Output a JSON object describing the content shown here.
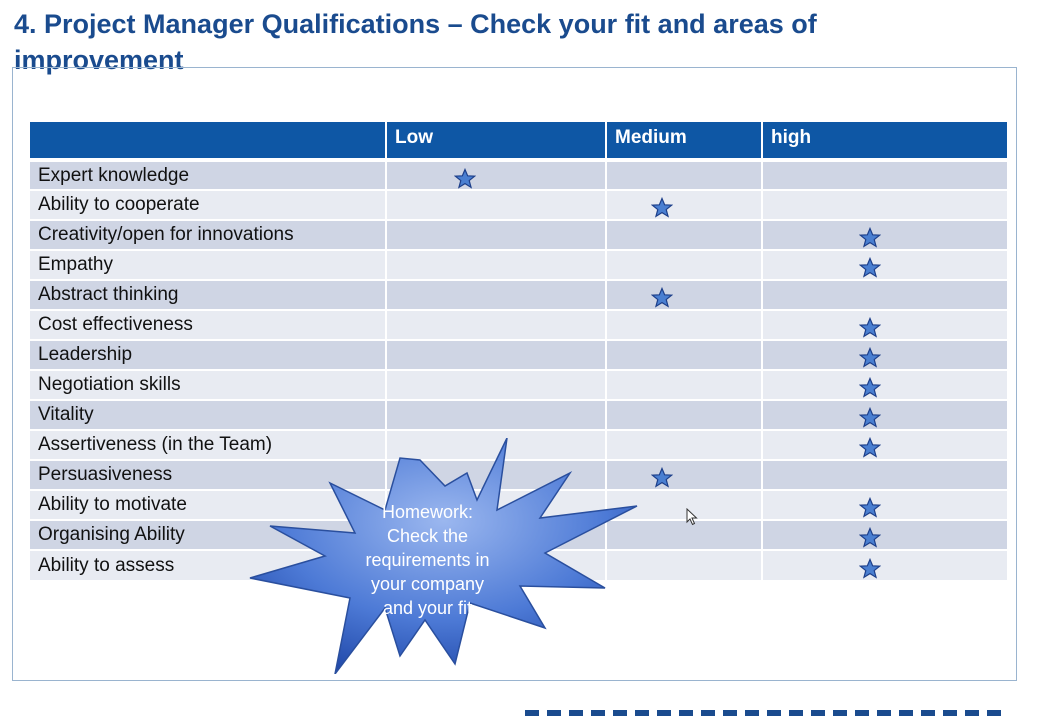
{
  "title": {
    "line1": "4. Project Manager Qualifications – Check your fit and areas of",
    "line2": "improvement"
  },
  "table": {
    "headers": [
      "",
      "Low",
      "Medium",
      "high"
    ],
    "rows": [
      {
        "label": "Expert knowledge",
        "rating": "Low"
      },
      {
        "label": "Ability to cooperate",
        "rating": "Medium"
      },
      {
        "label": "Creativity/open for innovations",
        "rating": "high"
      },
      {
        "label": "Empathy",
        "rating": "high"
      },
      {
        "label": "Abstract thinking",
        "rating": "Medium"
      },
      {
        "label": "Cost effectiveness",
        "rating": "high"
      },
      {
        "label": "Leadership",
        "rating": "high"
      },
      {
        "label": "Negotiation skills",
        "rating": "high"
      },
      {
        "label": "Vitality",
        "rating": "high"
      },
      {
        "label": "Assertiveness (in the Team)",
        "rating": "high"
      },
      {
        "label": "Persuasiveness",
        "rating": "Medium"
      },
      {
        "label": "Ability to motivate",
        "rating": "high"
      },
      {
        "label": "Organising Ability",
        "rating": "high"
      },
      {
        "label": "Ability to assess",
        "rating": "high"
      }
    ]
  },
  "callout": {
    "lines": [
      "Homework:",
      "Check the",
      "requirements in",
      "your company",
      "and your fit"
    ]
  },
  "colors": {
    "header_bg": "#0e57a5",
    "title": "#1a4b8e",
    "star": "#4a7fd1"
  },
  "icons": {
    "rating": "star-icon",
    "pointer": "mouse-cursor-icon"
  }
}
